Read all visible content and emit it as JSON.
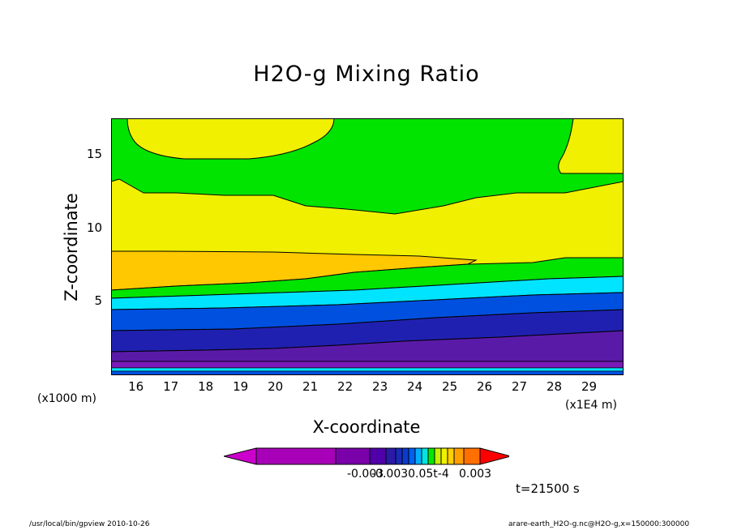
{
  "chart_data": {
    "type": "contour",
    "title": "H2O-g Mixing Ratio",
    "xlabel": "X-coordinate",
    "ylabel": "Z-coordinate",
    "x_unit_left": "(x1000 m)",
    "x_unit_right": "(x1E4 m)",
    "x_ticks": [
      "16",
      "17",
      "18",
      "19",
      "20",
      "21",
      "22",
      "23",
      "24",
      "25",
      "26",
      "27",
      "28",
      "29"
    ],
    "y_ticks": [
      "5",
      "10",
      "15"
    ],
    "xlim": [
      153000,
      300000
    ],
    "ylim": [
      0,
      17500
    ],
    "colorbar": {
      "labels": [
        "-0.003",
        "-0.0030.05t-4",
        "0.003"
      ],
      "colors": [
        "#cc00cc",
        "#a800b8",
        "#7a00aa",
        "#5000a8",
        "#2a1aa8",
        "#1a2ab8",
        "#0a3ad0",
        "#0060f0",
        "#00b0ff",
        "#00e4e4",
        "#00e800",
        "#c8f000",
        "#f0f000",
        "#ffd000",
        "#ffa000",
        "#ff7000",
        "#ff0000"
      ]
    },
    "contour_bands_from_top": [
      {
        "level": "green",
        "color": "#00e400"
      },
      {
        "level": "yellow",
        "color": "#f0f000"
      },
      {
        "level": "orange-yellow",
        "color": "#ffc800"
      },
      {
        "level": "green",
        "color": "#00e400"
      },
      {
        "level": "cyan",
        "color": "#00e4ff"
      },
      {
        "level": "blue",
        "color": "#0050e0"
      },
      {
        "level": "dark-blue",
        "color": "#2020b0"
      },
      {
        "level": "purple",
        "color": "#5a1aa8"
      },
      {
        "level": "violet",
        "color": "#7a1ab8"
      }
    ]
  },
  "annotations": {
    "time": "t=21500 s",
    "footer_left": "/usr/local/bin/gpview  2010-10-26",
    "footer_right": "arare-earth_H2O-g.nc@H2O-g,x=150000:300000"
  }
}
